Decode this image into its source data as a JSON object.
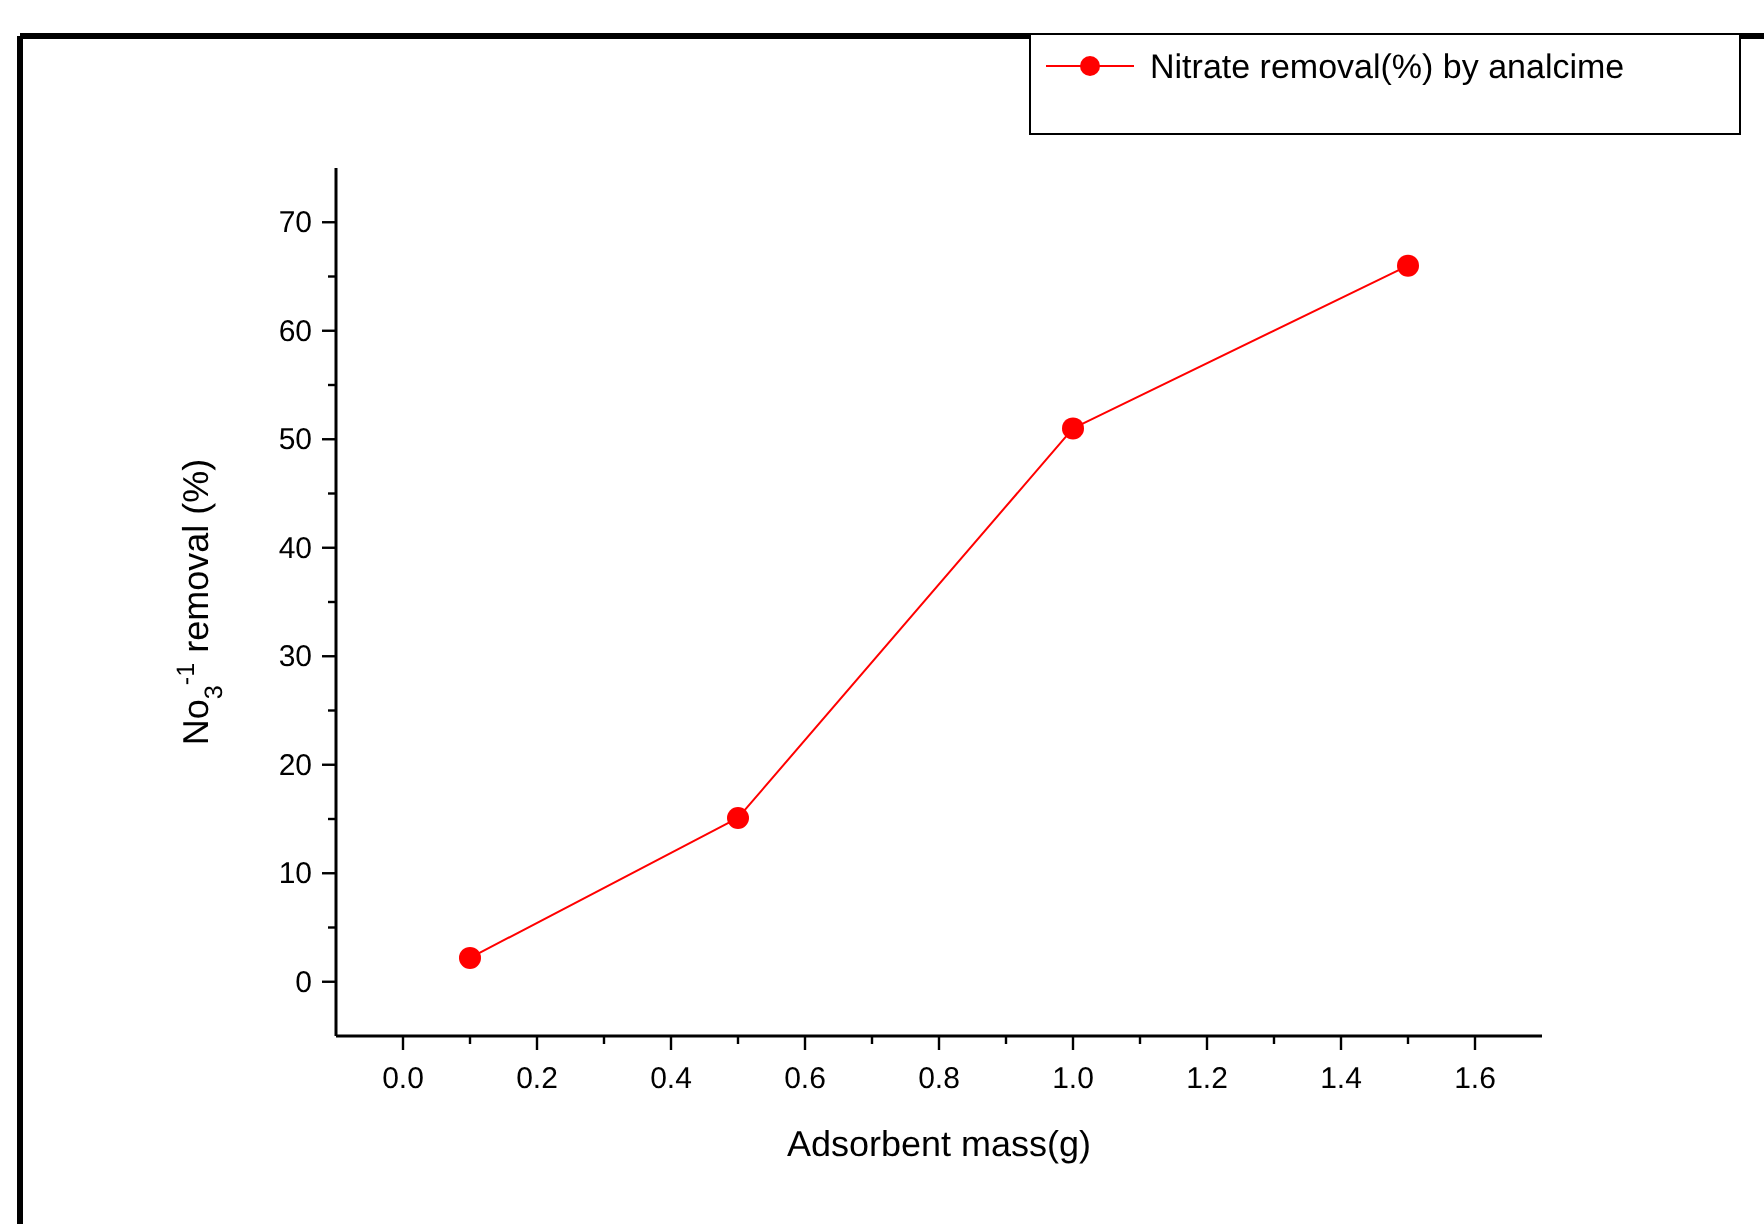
{
  "chart_data": {
    "type": "line",
    "xlabel": "Adsorbent mass(g)",
    "ylabel": "No$_{3}$$^{-1}$ removal (%)",
    "x": [
      0.1,
      0.5,
      1.0,
      1.5
    ],
    "series": [
      {
        "name": "Nitrate removal(%) by analcime",
        "color": "#ff0000",
        "values": [
          2.2,
          15.1,
          51,
          66
        ]
      }
    ],
    "xlim": [
      -0.1,
      1.7
    ],
    "xticks": [
      {
        "value": 0,
        "label": "0.0"
      },
      {
        "value": 0.1,
        "label": null
      },
      {
        "value": 0.2,
        "label": "0.2"
      },
      {
        "value": 0.3,
        "label": null
      },
      {
        "value": 0.4,
        "label": "0.4"
      },
      {
        "value": 0.5,
        "label": null
      },
      {
        "value": 0.6,
        "label": "0.6"
      },
      {
        "value": 0.7,
        "label": null
      },
      {
        "value": 0.8,
        "label": "0.8"
      },
      {
        "value": 0.9,
        "label": null
      },
      {
        "value": 1,
        "label": "1.0"
      },
      {
        "value": 1.1,
        "label": null
      },
      {
        "value": 1.2,
        "label": "1.2"
      },
      {
        "value": 1.3,
        "label": null
      },
      {
        "value": 1.4,
        "label": "1.4"
      },
      {
        "value": 1.5,
        "label": null
      },
      {
        "value": 1.6,
        "label": "1.6"
      }
    ],
    "ylim": [
      -5,
      75
    ],
    "yticks": [
      0,
      {
        "value": 5,
        "label": null
      },
      10,
      {
        "value": 15,
        "label": null
      },
      20,
      {
        "value": 25,
        "label": null
      },
      30,
      {
        "value": 35,
        "label": null
      },
      40,
      {
        "value": 45,
        "label": null
      },
      50,
      {
        "value": 55,
        "label": null
      },
      60,
      {
        "value": 65,
        "label": null
      },
      70
    ],
    "marker": "circle",
    "line_style": "solid",
    "legend": "top right",
    "grid": false
  }
}
